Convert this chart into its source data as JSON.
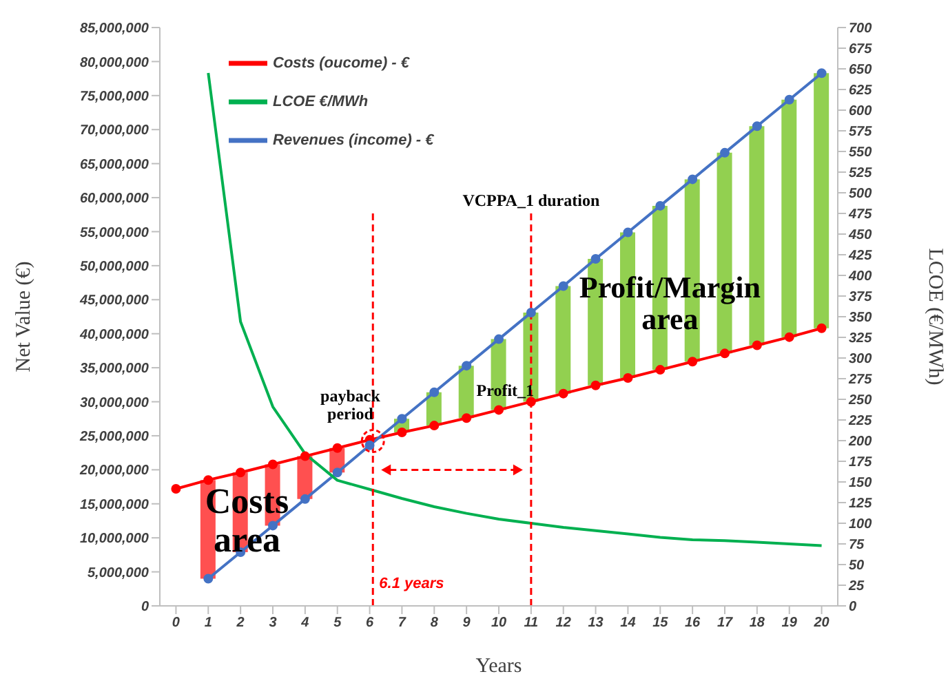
{
  "chart_data": {
    "type": "line",
    "xlabel": "Years",
    "ylabel": "Net Value (€)",
    "y2label": "LCOE (€/MWh)",
    "x": [
      0,
      1,
      2,
      3,
      4,
      5,
      6,
      7,
      8,
      9,
      10,
      11,
      12,
      13,
      14,
      15,
      16,
      17,
      18,
      19,
      20
    ],
    "xlim": [
      -0.5,
      20.5
    ],
    "xticks": [
      0,
      1,
      2,
      3,
      4,
      5,
      6,
      7,
      8,
      9,
      10,
      11,
      12,
      13,
      14,
      15,
      16,
      17,
      18,
      19,
      20
    ],
    "ylim": [
      0,
      85000000
    ],
    "yticks": [
      0,
      {
        "value": 5000000,
        "label": "5,000,000"
      },
      {
        "value": 10000000,
        "label": "10,000,000"
      },
      {
        "value": 15000000,
        "label": "15,000,000"
      },
      {
        "value": 20000000,
        "label": "20,000,000"
      },
      {
        "value": 25000000,
        "label": "25,000,000"
      },
      {
        "value": 30000000,
        "label": "30,000,000"
      },
      {
        "value": 35000000,
        "label": "35,000,000"
      },
      {
        "value": 40000000,
        "label": "40,000,000"
      },
      {
        "value": 45000000,
        "label": "45,000,000"
      },
      {
        "value": 50000000,
        "label": "50,000,000"
      },
      {
        "value": 55000000,
        "label": "55,000,000"
      },
      {
        "value": 60000000,
        "label": "60,000,000"
      },
      {
        "value": 65000000,
        "label": "65,000,000"
      },
      {
        "value": 70000000,
        "label": "70,000,000"
      },
      {
        "value": 75000000,
        "label": "75,000,000"
      },
      {
        "value": 80000000,
        "label": "80,000,000"
      },
      {
        "value": 85000000,
        "label": "85,000,000"
      }
    ],
    "y2lim": [
      0,
      700
    ],
    "y2ticks": [
      0,
      25,
      50,
      75,
      100,
      125,
      150,
      175,
      200,
      225,
      250,
      275,
      300,
      325,
      350,
      375,
      400,
      425,
      450,
      475,
      500,
      525,
      550,
      575,
      600,
      625,
      650,
      675,
      700
    ],
    "series": [
      {
        "type": "bar",
        "color": "#ff5050",
        "base": [
          null,
          4000000,
          7900000,
          11800000,
          15700000,
          19600000,
          null,
          null,
          null,
          null,
          null,
          null,
          null,
          null,
          null,
          null,
          null,
          null,
          null,
          null,
          null
        ],
        "values": [
          null,
          14500000,
          11700000,
          9000000,
          6300000,
          3600000,
          null,
          null,
          null,
          null,
          null,
          null,
          null,
          null,
          null,
          null,
          null,
          null,
          null,
          null,
          null
        ]
      },
      {
        "type": "bar",
        "color": "#92d050",
        "base": [
          null,
          null,
          null,
          null,
          null,
          null,
          null,
          25500000,
          26500000,
          27600000,
          28800000,
          30000000,
          31200000,
          32400000,
          33500000,
          34700000,
          35900000,
          37100000,
          38300000,
          39500000,
          40800000
        ],
        "values": [
          null,
          null,
          null,
          null,
          null,
          null,
          null,
          2000000,
          4900000,
          7700000,
          10400000,
          13100000,
          15800000,
          18600000,
          21400000,
          24100000,
          26800000,
          29500000,
          32200000,
          34900000,
          37500000
        ]
      },
      {
        "name": "Costs (oucome) - €",
        "color": "#ff0000",
        "marker": "circle",
        "values": [
          17200000,
          18500000,
          19600000,
          20800000,
          22000000,
          23200000,
          24400000,
          25500000,
          26500000,
          27600000,
          28800000,
          30000000,
          31200000,
          32400000,
          33500000,
          34700000,
          35900000,
          37100000,
          38300000,
          39500000,
          40800000
        ]
      },
      {
        "name": "Revenues (income) - €",
        "color": "#4472c4",
        "marker": "circle",
        "values": [
          null,
          4000000,
          7900000,
          11800000,
          15700000,
          19600000,
          23600000,
          27500000,
          31400000,
          35300000,
          39200000,
          43100000,
          47000000,
          51000000,
          54900000,
          58800000,
          62700000,
          66600000,
          70500000,
          74400000,
          78300000
        ]
      },
      {
        "name": "LCOE €/MWh",
        "color": "#00b050",
        "marker": "none",
        "axis": "y2",
        "values": [
          null,
          645,
          344,
          241,
          184,
          152,
          141,
          130,
          120,
          112,
          105,
          100,
          95,
          91,
          87,
          83,
          80,
          79,
          77,
          75,
          73
        ]
      }
    ],
    "ref_lines": [
      {
        "axis": "x",
        "value": 6.1,
        "label": null,
        "color": "#ff0000",
        "line_style": "dashed"
      },
      {
        "axis": "x",
        "value": 11,
        "label": "VCPPA_1 duration",
        "color": "#ff0000",
        "line_style": "dashed"
      }
    ],
    "annotations": [
      "payback period",
      "6.1 years",
      "Profit_1",
      "Profit/Margin area",
      "Costs area"
    ],
    "legend": "top left",
    "grid": false
  }
}
